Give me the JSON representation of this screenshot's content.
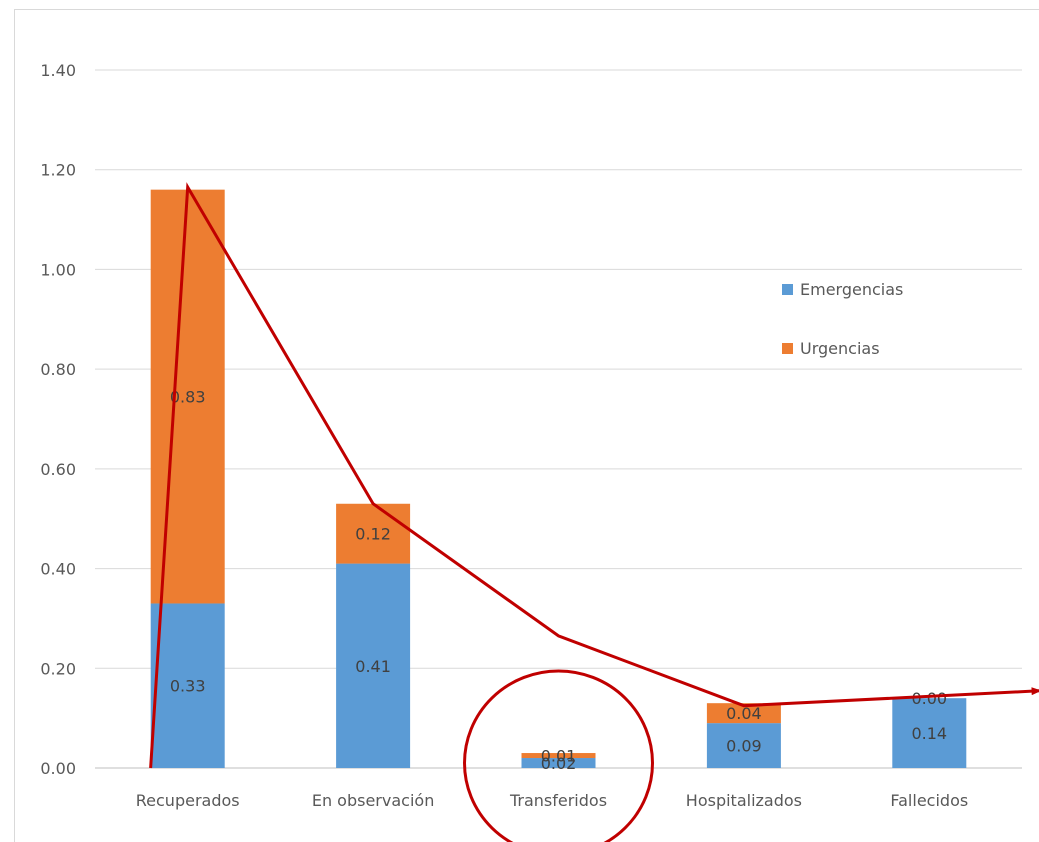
{
  "chart_data": {
    "type": "bar",
    "stacked": true,
    "categories": [
      "Recuperados",
      "En observación",
      "Transferidos",
      "Hospitalizados",
      "Fallecidos"
    ],
    "series": [
      {
        "name": "Emergencias",
        "values": [
          0.33,
          0.41,
          0.02,
          0.09,
          0.14
        ],
        "labels": [
          "0.33",
          "0.41",
          "0.02",
          "0.09",
          "0.14"
        ],
        "color": "#5b9bd5"
      },
      {
        "name": "Urgencias",
        "values": [
          0.83,
          0.12,
          0.01,
          0.04,
          0.0
        ],
        "labels": [
          "0.83",
          "0.12",
          "0.01",
          "0.04",
          "0.00"
        ],
        "color": "#ed7d31"
      }
    ],
    "y_ticks": [
      "0.00",
      "0.20",
      "0.40",
      "0.60",
      "0.80",
      "1.00",
      "1.20",
      "1.40"
    ],
    "ylim": [
      0,
      1.4
    ],
    "grid": true,
    "legend_position": "right",
    "title": "",
    "xlabel": "",
    "ylabel": "",
    "annotations": {
      "trend_arrow": {
        "color": "#c00000",
        "points": [
          [
            -0.2,
            0.0
          ],
          [
            0,
            1.165
          ],
          [
            1,
            0.53
          ],
          [
            2,
            0.265
          ],
          [
            3,
            0.125
          ],
          [
            4.6,
            0.155
          ]
        ]
      },
      "highlight_circle": {
        "color": "#c00000",
        "category": "Transferidos"
      }
    }
  }
}
